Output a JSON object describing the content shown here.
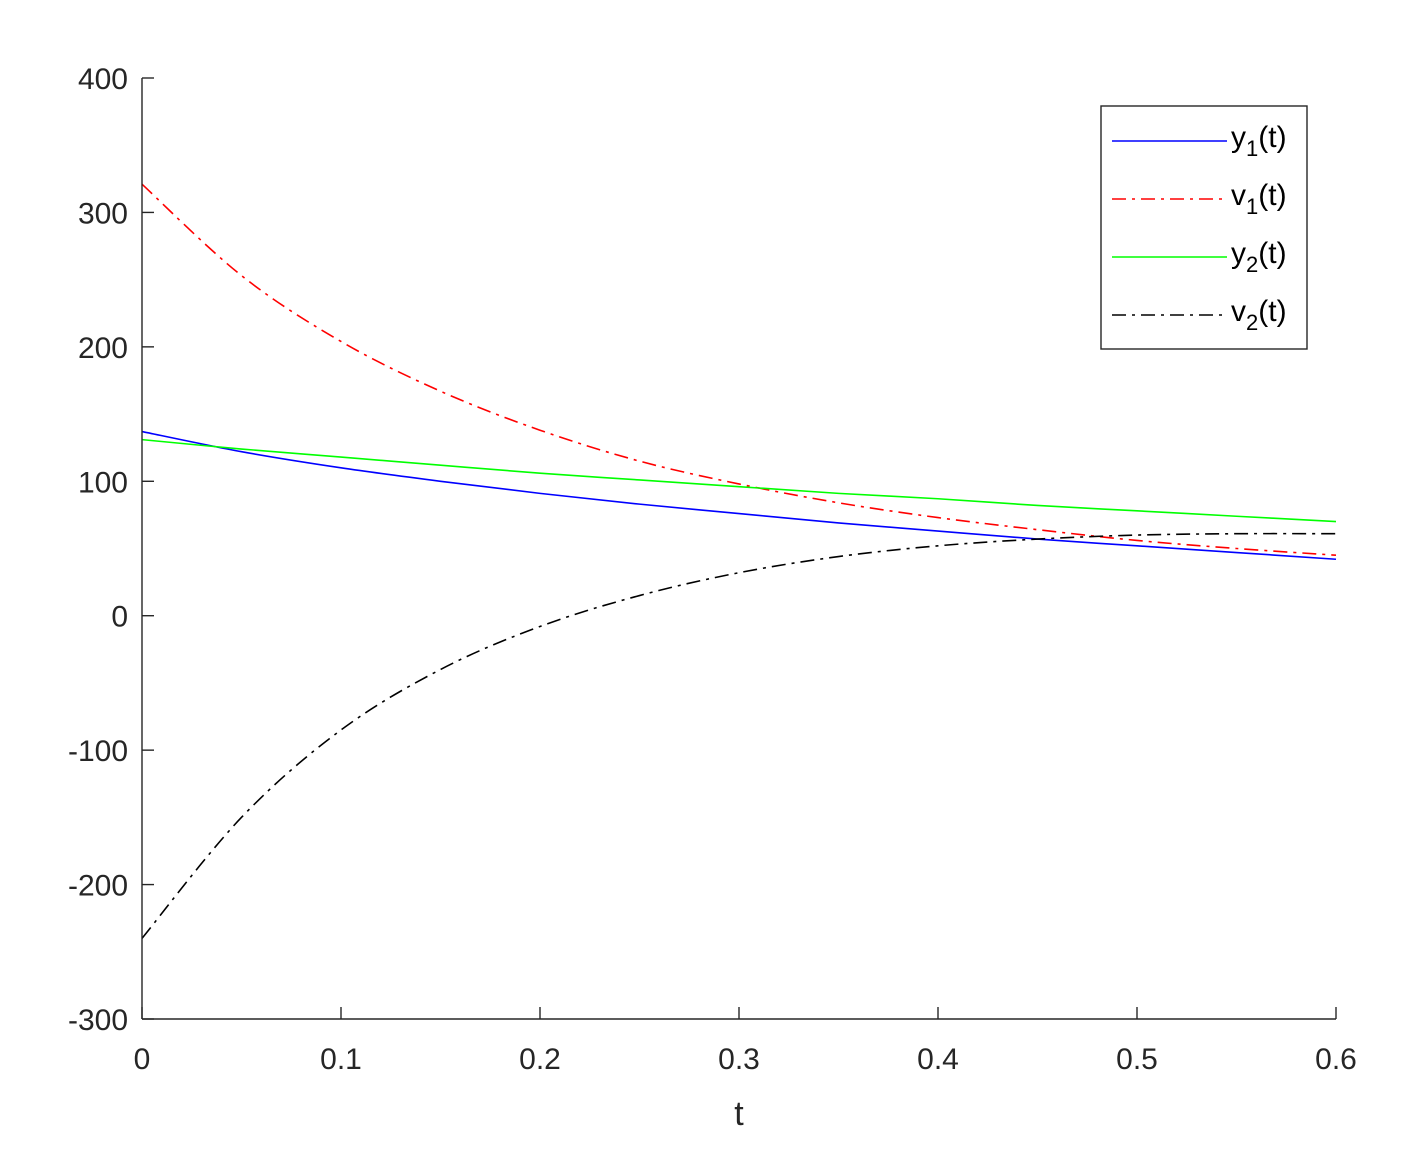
{
  "chart_data": {
    "type": "line",
    "title": "",
    "xlabel": "t",
    "ylabel": "",
    "xlim": [
      0,
      0.6
    ],
    "ylim": [
      -300,
      400
    ],
    "xticks": [
      0,
      0.1,
      0.2,
      0.3,
      0.4,
      0.5,
      0.6
    ],
    "xtick_labels": [
      "0",
      "0.1",
      "0.2",
      "0.3",
      "0.4",
      "0.5",
      "0.6"
    ],
    "yticks": [
      -300,
      -200,
      -100,
      0,
      100,
      200,
      300,
      400
    ],
    "ytick_labels": [
      "-300",
      "-200",
      "-100",
      "0",
      "100",
      "200",
      "300",
      "400"
    ],
    "grid": false,
    "legend_position": "top-right",
    "x": [
      0,
      0.05,
      0.1,
      0.15,
      0.2,
      0.25,
      0.3,
      0.35,
      0.4,
      0.45,
      0.5,
      0.55,
      0.6
    ],
    "series": [
      {
        "name": "y",
        "subscript": "1",
        "suffix": "(t)",
        "color": "#0000ff",
        "style": "solid",
        "values": [
          137,
          122,
          110,
          100,
          91,
          83,
          76,
          69,
          63,
          57,
          52,
          47,
          42
        ]
      },
      {
        "name": "v",
        "subscript": "1",
        "suffix": "(t)",
        "color": "#ff0000",
        "style": "dashdot",
        "values": [
          321,
          253,
          204,
          167,
          138,
          115,
          98,
          84,
          73,
          64,
          56,
          50,
          45
        ]
      },
      {
        "name": "y",
        "subscript": "2",
        "suffix": "(t)",
        "color": "#00ff00",
        "style": "solid",
        "values": [
          131,
          124,
          118,
          112,
          106,
          101,
          96,
          91,
          87,
          82,
          78,
          74,
          70
        ]
      },
      {
        "name": "v",
        "subscript": "2",
        "suffix": "(t)",
        "color": "#000000",
        "style": "dashdot",
        "values": [
          -240,
          -150,
          -85,
          -40,
          -8,
          15,
          32,
          44,
          52,
          57,
          60,
          61,
          61
        ]
      }
    ]
  }
}
